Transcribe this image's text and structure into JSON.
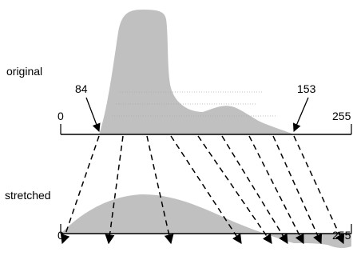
{
  "diagram": {
    "section_labels": {
      "original": "original",
      "stretched": "stretched"
    },
    "original_axis": {
      "min_label": "0",
      "max_label": "255",
      "low_marker_label": "84",
      "high_marker_label": "153"
    },
    "stretched_axis": {
      "min_label": "0",
      "max_label": "255"
    },
    "colors": {
      "histogram_fill": "#c0c0c0",
      "line": "#000000",
      "background": "#ffffff"
    },
    "mapping_arrow_count": 9
  }
}
